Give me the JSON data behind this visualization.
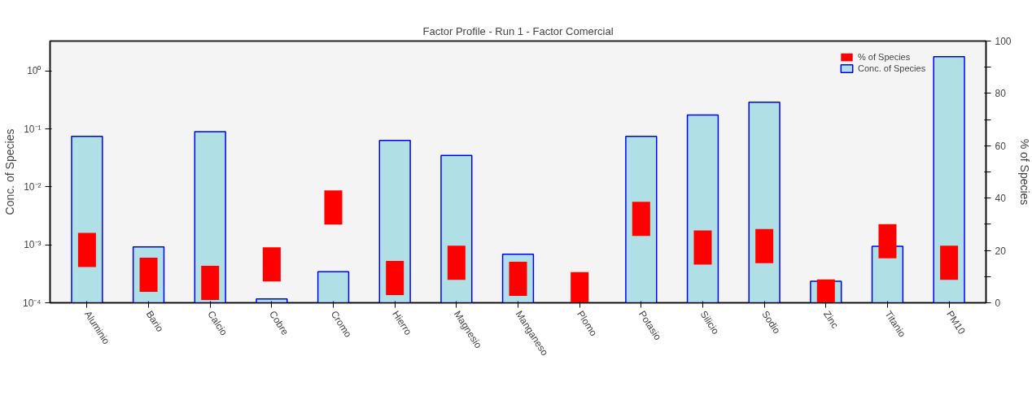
{
  "chart_data": {
    "type": "bar",
    "title": "Factor Profile - Run 1 - Factor Comercial",
    "ylabel": "Conc. of Species",
    "y2label": "% of Species",
    "categories": [
      "Aluminio",
      "Bario",
      "Calcio",
      "Cobre",
      "Cromo",
      "Hierro",
      "Magnesio",
      "Manganeso",
      "Plomo",
      "Potasio",
      "Silicio",
      "Sodio",
      "Zinc",
      "Titanio",
      "PM10"
    ],
    "series": [
      {
        "name": "% of Species",
        "type": "scatter",
        "marker": "square",
        "axis": "y2",
        "color": "#ff0000",
        "values": [
          20.2,
          10.7,
          7.6,
          14.7,
          36.4,
          9.5,
          15.3,
          9.2,
          5.2,
          32.1,
          21.1,
          21.7,
          2.4,
          23.5,
          15.3
        ]
      },
      {
        "name": "Conc. of Species",
        "type": "bar",
        "color": "#b0dfe5",
        "values": [
          0.0746,
          0.00092,
          0.09,
          0.000117,
          0.000344,
          0.0637,
          0.0349,
          0.000689,
          null,
          0.0746,
          0.175,
          0.291,
          0.000235,
          0.000946,
          1.77
        ]
      }
    ],
    "log": "y",
    "ylim": [
      0.0001,
      3.3
    ],
    "yticks": [
      {
        "value": 0.0001,
        "label": "10⁻⁴"
      },
      {
        "value": 0.001,
        "label": "10⁻³"
      },
      {
        "value": 0.01,
        "label": "10⁻²"
      },
      {
        "value": 0.1,
        "label": "10⁻¹"
      },
      {
        "value": 1,
        "label": "10⁰"
      }
    ],
    "y2lim": [
      0,
      100
    ],
    "y2ticks": [
      0,
      {
        "value": 10,
        "label": null
      },
      20,
      {
        "value": 30,
        "label": null
      },
      40,
      {
        "value": 50,
        "label": null
      },
      60,
      {
        "value": 70,
        "label": null
      },
      80,
      {
        "value": 90,
        "label": null
      },
      100
    ],
    "grid": false,
    "legend": "top right"
  }
}
